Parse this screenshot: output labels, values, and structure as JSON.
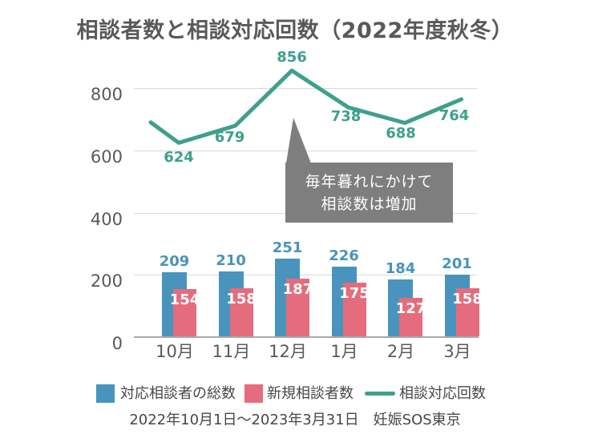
{
  "caption": "2022年10月1日～2023年3月31日　妊娠SOS東京",
  "colors": {
    "bar_total": "#4894BC",
    "bar_new": "#E56C7D",
    "line": "#3EA08C",
    "annotation_bg": "#7E7E7E",
    "text_dark": "#595959",
    "text_body": "#474747",
    "grid": "#D9D9D9",
    "axis": "#A9A9A9"
  },
  "chart_data": {
    "type": "combo",
    "title": "相談者数と相談対応回数（2022年度秋冬）",
    "categories": [
      "10月",
      "11月",
      "12月",
      "1月",
      "2月",
      "3月"
    ],
    "series": [
      {
        "name": "対応相談者の総数",
        "type": "bar",
        "color": "#4894BC",
        "values": [
          209,
          210,
          251,
          226,
          184,
          201
        ]
      },
      {
        "name": "新規相談者数",
        "type": "bar",
        "color": "#E56C7D",
        "values": [
          154,
          158,
          187,
          175,
          127,
          158
        ]
      },
      {
        "name": "相談対応回数",
        "type": "line",
        "color": "#3EA08C",
        "values": [
          624,
          679,
          856,
          738,
          688,
          764
        ],
        "lead_in_estimate": 690
      }
    ],
    "xlabel": "",
    "ylabel": "",
    "ylim": [
      0,
      800
    ],
    "yticks": [
      0,
      200,
      400,
      600,
      800
    ],
    "grid": true,
    "legend_position": "bottom",
    "annotation": {
      "lines": [
        "毎年暮れにかけて",
        "相談数は増加"
      ],
      "points_to": "line peak at 12月 (856)"
    }
  }
}
